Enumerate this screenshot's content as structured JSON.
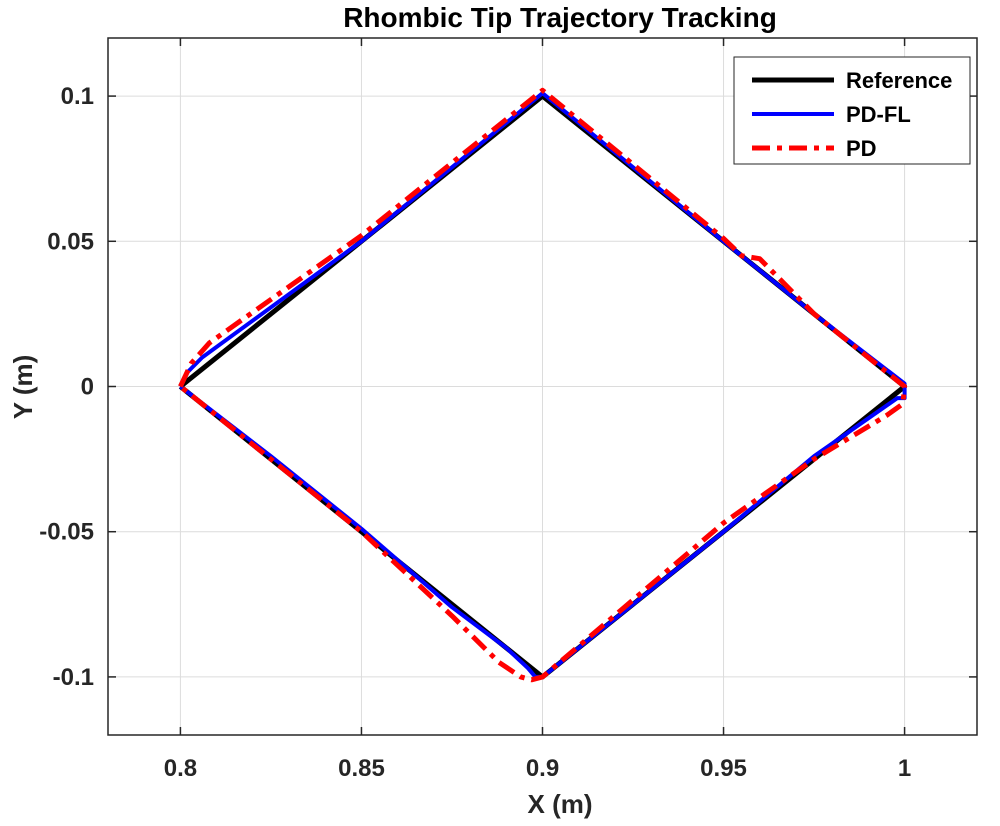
{
  "chart_data": {
    "type": "line",
    "title": "Rhombic Tip Trajectory Tracking",
    "xlabel": "X (m)",
    "ylabel": "Y (m)",
    "xlim": [
      0.78,
      1.02
    ],
    "ylim": [
      -0.12,
      0.12
    ],
    "xticks": [
      0.8,
      0.85,
      0.9,
      0.95,
      1.0
    ],
    "xtick_labels": [
      "0.8",
      "0.85",
      "0.9",
      "0.95",
      "1"
    ],
    "yticks": [
      -0.1,
      -0.05,
      0,
      0.05,
      0.1
    ],
    "ytick_labels": [
      "-0.1",
      "-0.05",
      "0",
      "0.05",
      "0.1"
    ],
    "grid": true,
    "legend_position": "top-right",
    "series": [
      {
        "name": "Reference",
        "color": "#000000",
        "dash": "solid",
        "x": [
          0.8,
          0.9,
          1.0,
          0.9,
          0.8
        ],
        "y": [
          0.0,
          0.1,
          0.0,
          -0.1,
          0.0
        ]
      },
      {
        "name": "PD-FL",
        "color": "#0000ff",
        "dash": "solid",
        "x": [
          0.8,
          0.802,
          0.806,
          0.85,
          0.9,
          0.95,
          0.975,
          1.0,
          1.0,
          0.998,
          0.975,
          0.95,
          0.9,
          0.898,
          0.896,
          0.89,
          0.875,
          0.85,
          0.825,
          0.8
        ],
        "y": [
          0.0,
          0.005,
          0.01,
          0.05,
          0.101,
          0.05,
          0.025,
          0.001,
          -0.004,
          -0.004,
          -0.024,
          -0.05,
          -0.1,
          -0.1,
          -0.097,
          -0.09,
          -0.076,
          -0.049,
          -0.024,
          0.0
        ]
      },
      {
        "name": "PD",
        "color": "#ff0000",
        "dash": "dashdot",
        "x": [
          0.8,
          0.803,
          0.808,
          0.85,
          0.9,
          0.95,
          0.955,
          0.96,
          0.975,
          1.0,
          0.9995,
          0.995,
          0.975,
          0.95,
          0.9,
          0.897,
          0.894,
          0.888,
          0.875,
          0.85,
          0.825,
          0.8
        ],
        "y": [
          0.0,
          0.008,
          0.015,
          0.052,
          0.102,
          0.051,
          0.045,
          0.044,
          0.025,
          0.0,
          -0.006,
          -0.01,
          -0.025,
          -0.047,
          -0.1,
          -0.101,
          -0.1,
          -0.095,
          -0.079,
          -0.05,
          -0.025,
          0.0
        ]
      }
    ]
  }
}
